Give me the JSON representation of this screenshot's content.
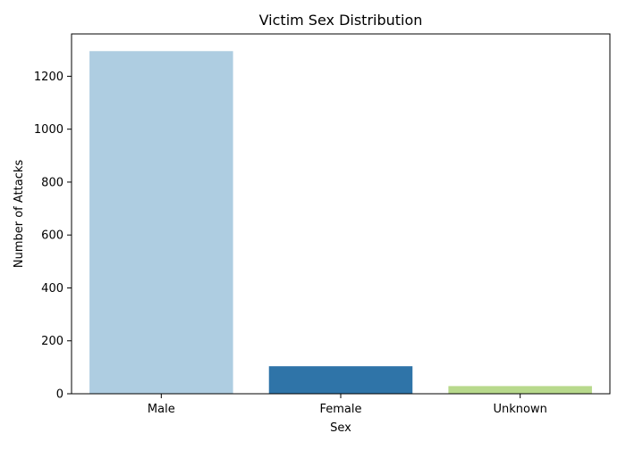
{
  "chart_data": {
    "type": "bar",
    "title": "Victim Sex Distribution",
    "xlabel": "Sex",
    "ylabel": "Number of Attacks",
    "categories": [
      "Male",
      "Female",
      "Unknown"
    ],
    "values": [
      1295,
      104,
      29
    ],
    "colors": [
      "#aecde1",
      "#2f74a8",
      "#b8d98c"
    ],
    "ylim": [
      0,
      1360
    ],
    "yticks": [
      0,
      200,
      400,
      600,
      800,
      1000,
      1200
    ],
    "grid": false,
    "legend": "none"
  }
}
